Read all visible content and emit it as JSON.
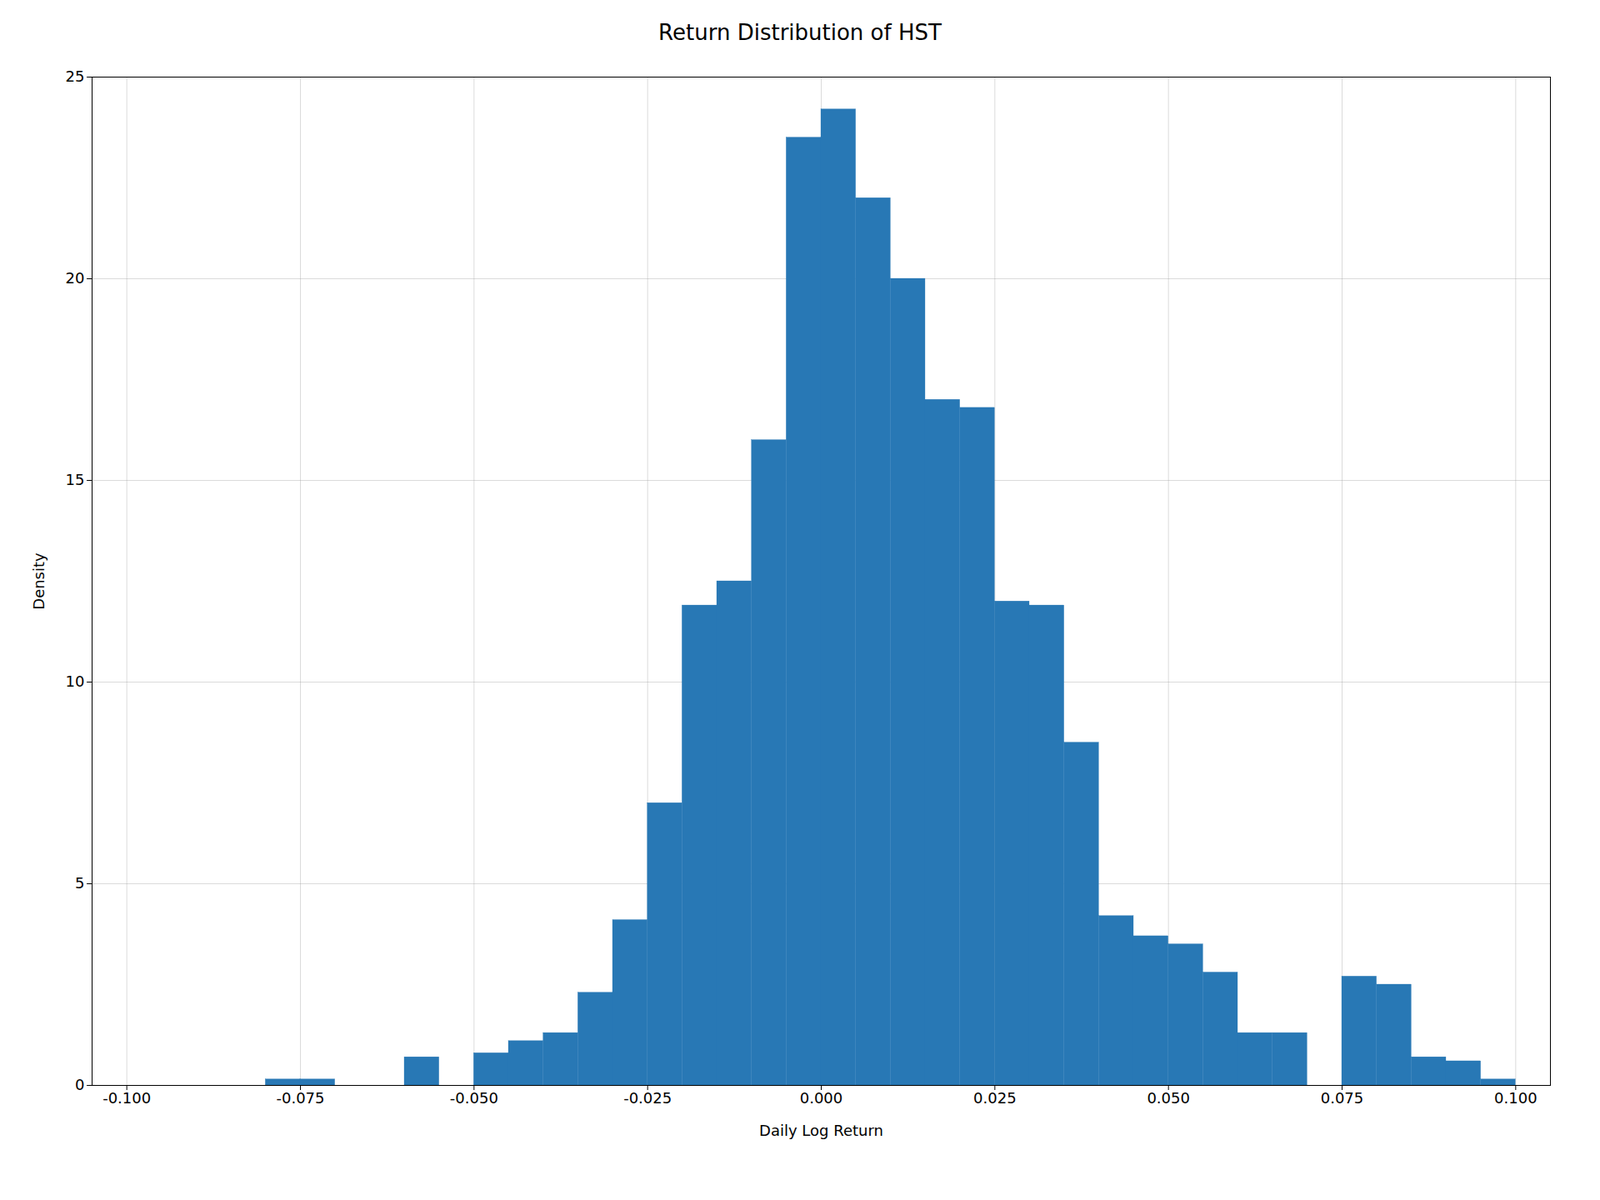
{
  "chart_data": {
    "type": "histogram",
    "title": "Return Distribution of HST",
    "xlabel": "Daily Log Return",
    "ylabel": "Density",
    "color": "#2878b5",
    "bins": [
      -0.1,
      -0.095,
      -0.09,
      -0.085,
      -0.08,
      -0.075,
      -0.07,
      -0.065,
      -0.06,
      -0.055,
      -0.05,
      -0.045,
      -0.04,
      -0.035,
      -0.03,
      -0.025,
      -0.02,
      -0.015,
      -0.01,
      -0.005,
      0,
      0.005,
      0.01,
      0.015,
      0.02,
      0.025,
      0.03,
      0.035,
      0.04,
      0.045,
      0.05,
      0.055,
      0.06,
      0.065,
      0.07,
      0.075,
      0.08,
      0.085,
      0.09,
      0.095,
      0.1
    ],
    "values": [
      0.0,
      0.0,
      0.0,
      0.0,
      0.15,
      0.15,
      0.0,
      0.0,
      0.7,
      0.0,
      0.8,
      1.1,
      1.3,
      2.3,
      4.1,
      7.0,
      11.9,
      12.5,
      16.0,
      23.5,
      24.2,
      22.0,
      20.0,
      17.0,
      16.8,
      12.0,
      11.9,
      8.5,
      4.2,
      3.7,
      3.5,
      2.8,
      1.3,
      1.3,
      0.0,
      2.7,
      2.5,
      0.7,
      0.6,
      0.15
    ],
    "xlim": [
      -0.105,
      0.105
    ],
    "xticks": [
      {
        "value": -0.1,
        "label": "-0.100"
      },
      {
        "value": -0.075,
        "label": "-0.075"
      },
      {
        "value": -0.05,
        "label": "-0.050"
      },
      {
        "value": -0.025,
        "label": "-0.025"
      },
      {
        "value": 0,
        "label": "0.000"
      },
      {
        "value": 0.025,
        "label": "0.025"
      },
      {
        "value": 0.05,
        "label": "0.050"
      },
      {
        "value": 0.075,
        "label": "0.075"
      },
      {
        "value": 0.1,
        "label": "0.100"
      }
    ],
    "ylim": [
      0,
      25
    ],
    "yticks": [
      0,
      5,
      10,
      15,
      20,
      25
    ],
    "grid": true
  }
}
